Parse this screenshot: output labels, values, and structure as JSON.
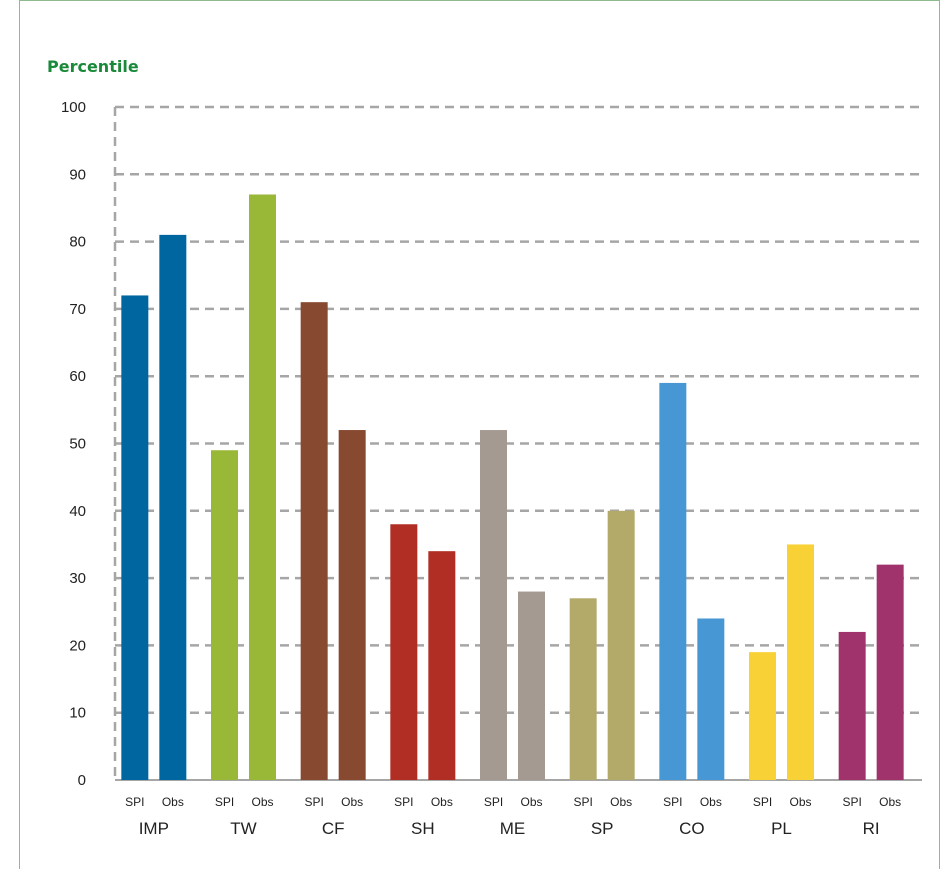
{
  "chart_data": {
    "type": "bar",
    "title": "Percentile",
    "ylim": [
      0,
      100
    ],
    "yticks": [
      0,
      10,
      20,
      30,
      40,
      50,
      60,
      70,
      80,
      90,
      100
    ],
    "grid": true,
    "sub_labels": [
      "SPI",
      "Obs"
    ],
    "categories": [
      {
        "name": "IMP",
        "color": "#00669f",
        "values": [
          72,
          81
        ]
      },
      {
        "name": "TW",
        "color": "#9ab837",
        "values": [
          49,
          87
        ]
      },
      {
        "name": "CF",
        "color": "#874a31",
        "values": [
          71,
          52
        ]
      },
      {
        "name": "SH",
        "color": "#b02e24",
        "values": [
          38,
          34
        ]
      },
      {
        "name": "ME",
        "color": "#a59a92",
        "values": [
          52,
          28
        ]
      },
      {
        "name": "SP",
        "color": "#b3aa6a",
        "values": [
          27,
          40
        ]
      },
      {
        "name": "CO",
        "color": "#4897d5",
        "values": [
          59,
          24
        ]
      },
      {
        "name": "PL",
        "color": "#f8d137",
        "values": [
          19,
          35
        ]
      },
      {
        "name": "RI",
        "color": "#a0336b",
        "values": [
          22,
          32
        ]
      }
    ]
  }
}
